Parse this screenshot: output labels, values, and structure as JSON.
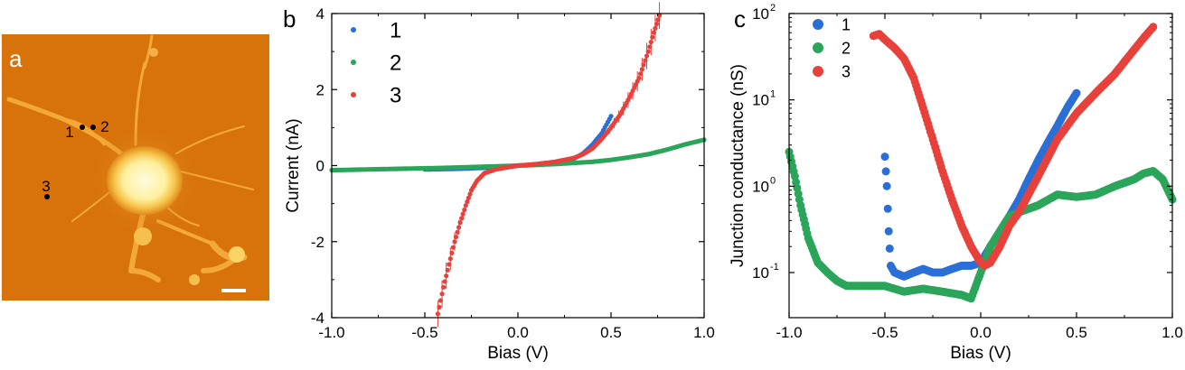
{
  "panels": {
    "a": {
      "label": "a",
      "markers": [
        {
          "label": "1"
        },
        {
          "label": "2"
        },
        {
          "label": "3"
        }
      ],
      "colors": {
        "background": "#d8730c",
        "bright": "#fff7b0",
        "edge": "#f2b040"
      }
    },
    "b": {
      "label": "b"
    },
    "c": {
      "label": "c"
    }
  },
  "chart_data": [
    {
      "panel": "b",
      "type": "scatter",
      "xlabel": "Bias (V)",
      "ylabel": "Current (nA)",
      "xlim": [
        -1.0,
        1.0
      ],
      "ylim": [
        -4,
        4
      ],
      "yscale": "linear",
      "xticks": [
        "-1.0",
        "-0.5",
        "0.0",
        "0.5",
        "1.0"
      ],
      "yticks": [
        "-4",
        "-2",
        "0",
        "2",
        "4"
      ],
      "xtick_values": [
        -1.0,
        -0.5,
        0.0,
        0.5,
        1.0
      ],
      "ytick_values": [
        -4,
        -2,
        0,
        2,
        4
      ],
      "legend_position": "top-left",
      "series": [
        {
          "name": "1",
          "color": "#2a6fd6",
          "x": [
            -0.5,
            -0.4,
            -0.3,
            -0.2,
            -0.1,
            0.0,
            0.1,
            0.2,
            0.25,
            0.3,
            0.35,
            0.4,
            0.45,
            0.5
          ],
          "y": [
            -0.1,
            -0.09,
            -0.08,
            -0.06,
            -0.04,
            0.0,
            0.02,
            0.06,
            0.1,
            0.18,
            0.32,
            0.55,
            0.85,
            1.3
          ]
        },
        {
          "name": "2",
          "color": "#2aa55a",
          "x": [
            -1.0,
            -0.8,
            -0.6,
            -0.4,
            -0.2,
            0.0,
            0.2,
            0.4,
            0.5,
            0.6,
            0.7,
            0.8,
            0.9,
            1.0
          ],
          "y": [
            -0.12,
            -0.1,
            -0.08,
            -0.06,
            -0.03,
            0.0,
            0.04,
            0.1,
            0.15,
            0.22,
            0.3,
            0.42,
            0.56,
            0.68
          ]
        },
        {
          "name": "3",
          "color": "#e8403a",
          "x": [
            -0.43,
            -0.4,
            -0.37,
            -0.34,
            -0.31,
            -0.28,
            -0.25,
            -0.22,
            -0.18,
            -0.12,
            -0.05,
            0.0,
            0.1,
            0.2,
            0.3,
            0.35,
            0.4,
            0.45,
            0.5,
            0.55,
            0.6,
            0.65,
            0.7,
            0.73,
            0.76
          ],
          "y": [
            -3.9,
            -3.2,
            -2.6,
            -2.0,
            -1.5,
            -1.05,
            -0.65,
            -0.4,
            -0.2,
            -0.1,
            -0.04,
            0.0,
            0.04,
            0.1,
            0.2,
            0.3,
            0.45,
            0.7,
            1.0,
            1.35,
            1.8,
            2.3,
            3.0,
            3.5,
            3.95
          ]
        }
      ]
    },
    {
      "panel": "c",
      "type": "scatter",
      "xlabel": "Bias (V)",
      "ylabel": "Junction conductance (nS)",
      "xlim": [
        -1.0,
        1.0
      ],
      "ylim": [
        0.03,
        100
      ],
      "yscale": "log",
      "xticks": [
        "-1.0",
        "-0.5",
        "0.0",
        "0.5",
        "1.0"
      ],
      "xtick_values": [
        -1.0,
        -0.5,
        0.0,
        0.5,
        1.0
      ],
      "yticks": [
        {
          "base": "10",
          "exp": "-1",
          "value": 0.1
        },
        {
          "base": "10",
          "exp": "0",
          "value": 1
        },
        {
          "base": "10",
          "exp": "1",
          "value": 10
        },
        {
          "base": "10",
          "exp": "2",
          "value": 100
        }
      ],
      "legend_position": "top-left",
      "series": [
        {
          "name": "1",
          "color": "#2a6fd6",
          "x": [
            -0.5,
            -0.49,
            -0.48,
            -0.47,
            -0.45,
            -0.4,
            -0.35,
            -0.3,
            -0.25,
            -0.2,
            -0.15,
            -0.1,
            -0.05,
            0.0,
            0.05,
            0.1,
            0.15,
            0.2,
            0.25,
            0.3,
            0.35,
            0.4,
            0.45,
            0.5
          ],
          "y": [
            2.2,
            1.0,
            0.3,
            0.12,
            0.1,
            0.09,
            0.1,
            0.11,
            0.1,
            0.1,
            0.11,
            0.12,
            0.12,
            0.13,
            0.2,
            0.3,
            0.45,
            0.7,
            1.2,
            2.0,
            3.2,
            5.0,
            8.0,
            12.0
          ]
        },
        {
          "name": "2",
          "color": "#2aa55a",
          "x": [
            -1.0,
            -0.97,
            -0.94,
            -0.9,
            -0.85,
            -0.8,
            -0.75,
            -0.7,
            -0.6,
            -0.5,
            -0.4,
            -0.3,
            -0.2,
            -0.1,
            -0.05,
            0.0,
            0.05,
            0.1,
            0.15,
            0.2,
            0.3,
            0.4,
            0.5,
            0.6,
            0.7,
            0.8,
            0.85,
            0.9,
            0.95,
            1.0
          ],
          "y": [
            2.5,
            1.3,
            0.6,
            0.25,
            0.13,
            0.1,
            0.08,
            0.07,
            0.07,
            0.07,
            0.06,
            0.065,
            0.06,
            0.055,
            0.05,
            0.1,
            0.2,
            0.3,
            0.45,
            0.5,
            0.6,
            0.8,
            0.75,
            0.8,
            1.0,
            1.2,
            1.4,
            1.5,
            1.2,
            0.7
          ]
        },
        {
          "name": "3",
          "color": "#e8403a",
          "x": [
            -0.56,
            -0.53,
            -0.5,
            -0.45,
            -0.4,
            -0.35,
            -0.3,
            -0.25,
            -0.2,
            -0.15,
            -0.1,
            -0.05,
            0.0,
            0.02,
            0.05,
            0.1,
            0.15,
            0.2,
            0.3,
            0.4,
            0.5,
            0.6,
            0.7,
            0.8,
            0.85,
            0.9
          ],
          "y": [
            55,
            58,
            50,
            40,
            30,
            18,
            8,
            3.5,
            1.5,
            0.7,
            0.35,
            0.2,
            0.13,
            0.12,
            0.13,
            0.2,
            0.35,
            0.5,
            1.3,
            3.5,
            7.0,
            12,
            20,
            38,
            52,
            70
          ]
        }
      ]
    }
  ]
}
